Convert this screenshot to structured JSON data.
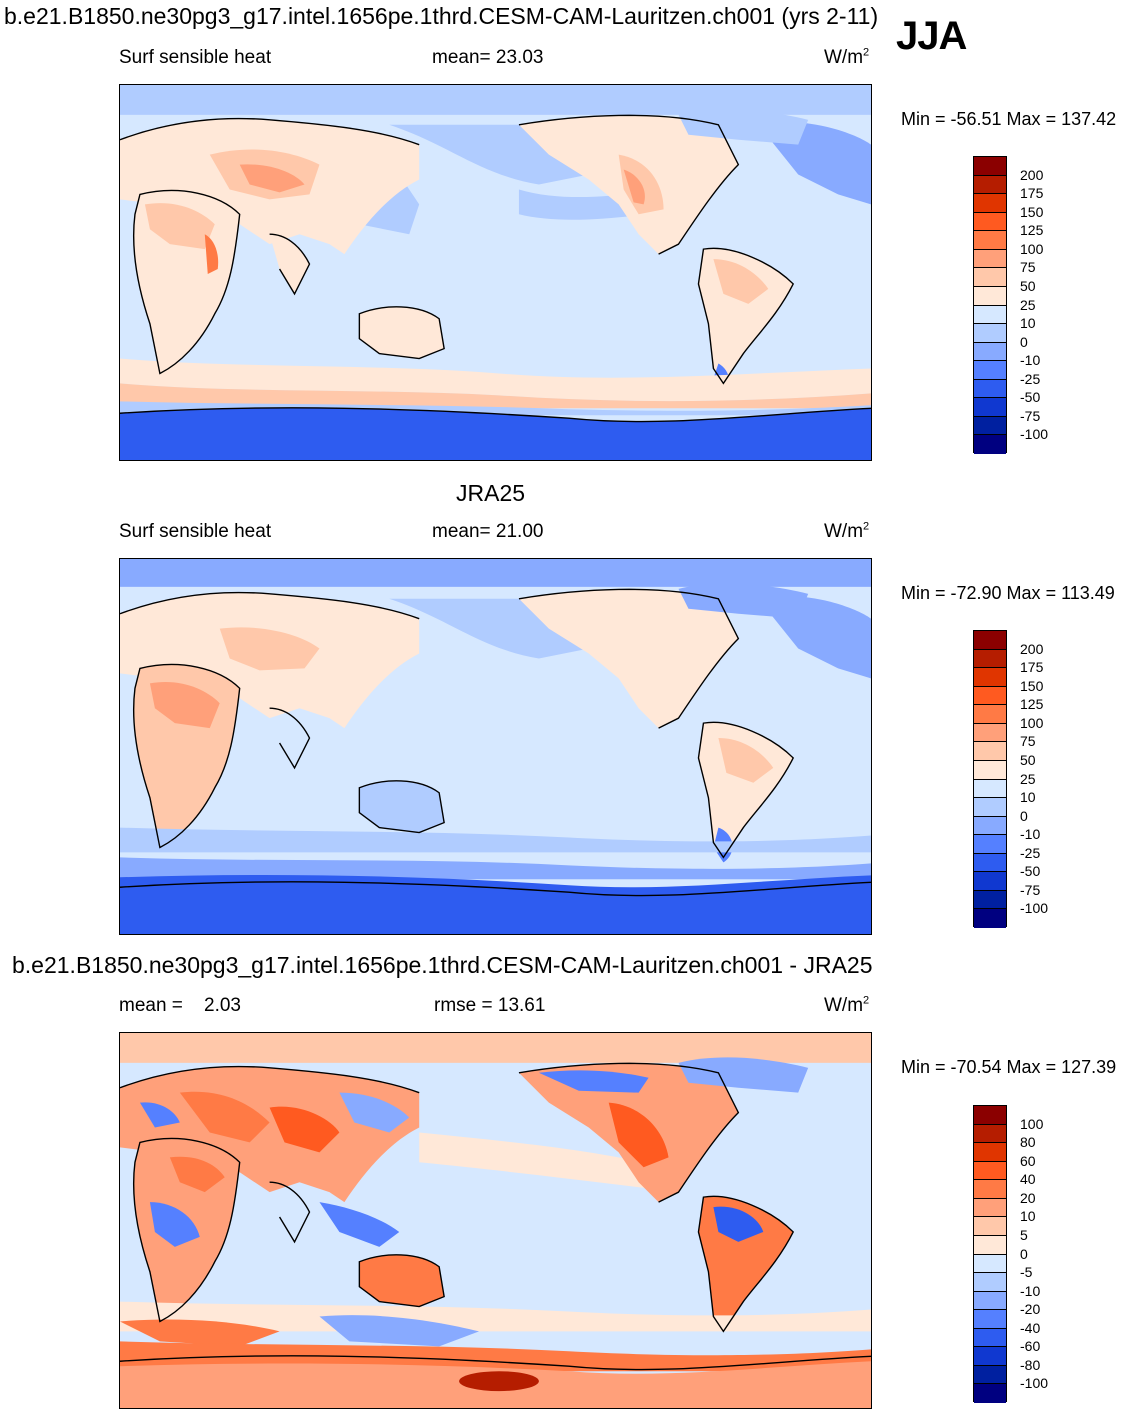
{
  "season": "JJA",
  "panels": [
    {
      "heading": "b.e21.B1850.ne30pg3_g17.intel.1656pe.1thrd.CESM-CAM-Lauritzen.ch001 (yrs 2-11)",
      "left_label": "Surf sensible heat",
      "center_label": "mean=  23.03",
      "units_base": "W/m",
      "units_exp": "2",
      "minmax": "Min = -56.51 Max = 137.42",
      "levels": [
        "200",
        "175",
        "150",
        "125",
        "100",
        "75",
        "50",
        "25",
        "10",
        "0",
        "-10",
        "-25",
        "-50",
        "-75",
        "-100"
      ],
      "colors": [
        "#8b0000",
        "#b51d00",
        "#e03500",
        "#ff5a20",
        "#ff7a45",
        "#ffa07a",
        "#ffc8aa",
        "#ffe8d8",
        "#d6e8ff",
        "#b0ccff",
        "#88aaff",
        "#5580ff",
        "#2e5cf0",
        "#1038d0",
        "#0020a0",
        "#000080"
      ]
    },
    {
      "heading": "JRA25",
      "left_label": "Surf sensible heat",
      "center_label": "mean=  21.00",
      "units_base": "W/m",
      "units_exp": "2",
      "minmax": "Min = -72.90 Max = 113.49",
      "levels": [
        "200",
        "175",
        "150",
        "125",
        "100",
        "75",
        "50",
        "25",
        "10",
        "0",
        "-10",
        "-25",
        "-50",
        "-75",
        "-100"
      ],
      "colors": [
        "#8b0000",
        "#b51d00",
        "#e03500",
        "#ff5a20",
        "#ff7a45",
        "#ffa07a",
        "#ffc8aa",
        "#ffe8d8",
        "#d6e8ff",
        "#b0ccff",
        "#88aaff",
        "#5580ff",
        "#2e5cf0",
        "#1038d0",
        "#0020a0",
        "#000080"
      ]
    },
    {
      "heading": "b.e21.B1850.ne30pg3_g17.intel.1656pe.1thrd.CESM-CAM-Lauritzen.ch001 - JRA25",
      "left_label": "mean =    2.03",
      "center_label": "rmse =  13.61",
      "units_base": "W/m",
      "units_exp": "2",
      "minmax": "Min = -70.54 Max = 127.39",
      "levels": [
        "100",
        "80",
        "60",
        "40",
        "20",
        "10",
        "5",
        "0",
        "-5",
        "-10",
        "-20",
        "-40",
        "-60",
        "-80",
        "-100"
      ],
      "colors": [
        "#8b0000",
        "#b51d00",
        "#e03500",
        "#ff5a20",
        "#ff7a45",
        "#ffa07a",
        "#ffc8aa",
        "#ffe8d8",
        "#d6e8ff",
        "#b0ccff",
        "#88aaff",
        "#5580ff",
        "#2e5cf0",
        "#1038d0",
        "#0020a0",
        "#000080"
      ]
    }
  ]
}
